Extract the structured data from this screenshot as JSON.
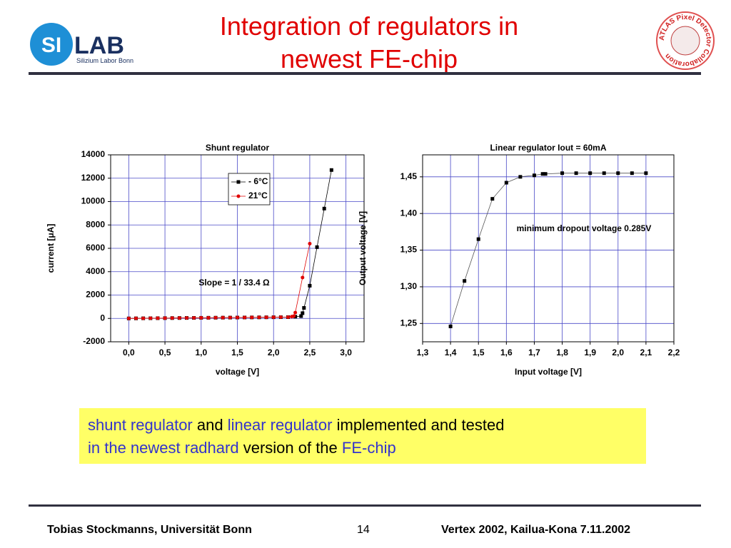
{
  "header": {
    "title": "Integration of regulators in newest FE-chip",
    "logo_left": {
      "mark": "SI",
      "word": "LAB",
      "subtitle": "Silizium Labor Bonn"
    },
    "logo_right": "ATLAS Pixel Detector Collaboration"
  },
  "chart_data": [
    {
      "type": "line",
      "title": "Shunt regulator",
      "xlabel": "voltage [V]",
      "ylabel": "current [μA]",
      "xlim": [
        -0.25,
        3.25
      ],
      "xticks": [
        {
          "value": 0,
          "label": "0,0"
        },
        {
          "value": 0.5,
          "label": "0,5"
        },
        {
          "value": 1,
          "label": "1,0"
        },
        {
          "value": 1.5,
          "label": "1,5"
        },
        {
          "value": 2,
          "label": "2,0"
        },
        {
          "value": 2.5,
          "label": "2,5"
        },
        {
          "value": 3,
          "label": "3,0"
        }
      ],
      "ylim": [
        -2000,
        14000
      ],
      "yticks": [
        -2000,
        0,
        2000,
        4000,
        6000,
        8000,
        10000,
        12000,
        14000
      ],
      "grid": true,
      "grid_color": "#4a4ac8",
      "legend": "upper center",
      "annotations": [
        "Slope = 1 / 33.4 Ω"
      ],
      "series": [
        {
          "name": "- 6°C",
          "color": "#000000",
          "marker": "square",
          "x": [
            0,
            0.1,
            0.2,
            0.3,
            0.4,
            0.5,
            0.6,
            0.7,
            0.8,
            0.9,
            1.0,
            1.1,
            1.2,
            1.3,
            1.4,
            1.5,
            1.6,
            1.7,
            1.8,
            1.9,
            2.0,
            2.1,
            2.2,
            2.3,
            2.38,
            2.4,
            2.42,
            2.5,
            2.6,
            2.7,
            2.8
          ],
          "values": [
            0,
            5,
            10,
            15,
            20,
            25,
            30,
            35,
            40,
            45,
            50,
            55,
            60,
            65,
            70,
            75,
            80,
            85,
            90,
            95,
            100,
            105,
            110,
            150,
            200,
            450,
            900,
            2800,
            6100,
            9400,
            12700
          ]
        },
        {
          "name": "21°C",
          "color": "#e00000",
          "marker": "circle",
          "x": [
            0,
            0.1,
            0.2,
            0.3,
            0.4,
            0.5,
            0.6,
            0.7,
            0.8,
            0.9,
            1.0,
            1.1,
            1.2,
            1.3,
            1.4,
            1.5,
            1.6,
            1.7,
            1.8,
            1.9,
            2.0,
            2.1,
            2.2,
            2.25,
            2.28,
            2.3,
            2.4,
            2.5
          ],
          "values": [
            0,
            5,
            10,
            15,
            20,
            25,
            30,
            35,
            40,
            45,
            50,
            55,
            60,
            65,
            70,
            75,
            80,
            85,
            90,
            95,
            100,
            105,
            110,
            150,
            200,
            500,
            3500,
            6400
          ]
        }
      ]
    },
    {
      "type": "line",
      "title": "Linear regulator Iout = 60mA",
      "xlabel": "Input voltage [V]",
      "ylabel": "Output voltage [V]",
      "xlim": [
        1.3,
        2.2
      ],
      "xticks": [
        {
          "value": 1.3,
          "label": "1,3"
        },
        {
          "value": 1.4,
          "label": "1,4"
        },
        {
          "value": 1.5,
          "label": "1,5"
        },
        {
          "value": 1.6,
          "label": "1,6"
        },
        {
          "value": 1.7,
          "label": "1,7"
        },
        {
          "value": 1.8,
          "label": "1,8"
        },
        {
          "value": 1.9,
          "label": "1,9"
        },
        {
          "value": 2.0,
          "label": "2,0"
        },
        {
          "value": 2.1,
          "label": "2,1"
        },
        {
          "value": 2.2,
          "label": "2,2"
        }
      ],
      "ylim": [
        1.225,
        1.48
      ],
      "yticks": [
        {
          "value": 1.25,
          "label": "1,25"
        },
        {
          "value": 1.3,
          "label": "1,30"
        },
        {
          "value": 1.35,
          "label": "1,35"
        },
        {
          "value": 1.4,
          "label": "1,40"
        },
        {
          "value": 1.45,
          "label": "1,45"
        }
      ],
      "grid": true,
      "grid_color": "#4a4ac8",
      "annotations": [
        "minimum dropout voltage 0.285V"
      ],
      "series": [
        {
          "color": "#000000",
          "line_color": "#555555",
          "marker": "square",
          "x": [
            1.4,
            1.45,
            1.5,
            1.55,
            1.6,
            1.65,
            1.7,
            1.73,
            1.74,
            1.8,
            1.85,
            1.9,
            1.95,
            2.0,
            2.05,
            2.1
          ],
          "values": [
            1.246,
            1.308,
            1.365,
            1.42,
            1.442,
            1.45,
            1.452,
            1.454,
            1.454,
            1.455,
            1.455,
            1.455,
            1.455,
            1.455,
            1.455,
            1.455
          ]
        }
      ]
    }
  ],
  "callout": {
    "segments": [
      {
        "text": "shunt regulator",
        "color": "#3333cc"
      },
      {
        "text": "and",
        "color": "#000000"
      },
      {
        "text": "linear regulator",
        "color": "#3333cc"
      },
      {
        "text": "implemented and tested",
        "color": "#000000"
      },
      {
        "text": "in the newest radhard",
        "color": "#3333cc"
      },
      {
        "text": "version of the",
        "color": "#000000"
      },
      {
        "text": "FE-chip",
        "color": "#3333cc"
      }
    ]
  },
  "footer": {
    "author": "Tobias Stockmanns, Universität Bonn",
    "page": 14,
    "event": "Vertex 2002, Kailua-Kona 7.11.2002"
  }
}
